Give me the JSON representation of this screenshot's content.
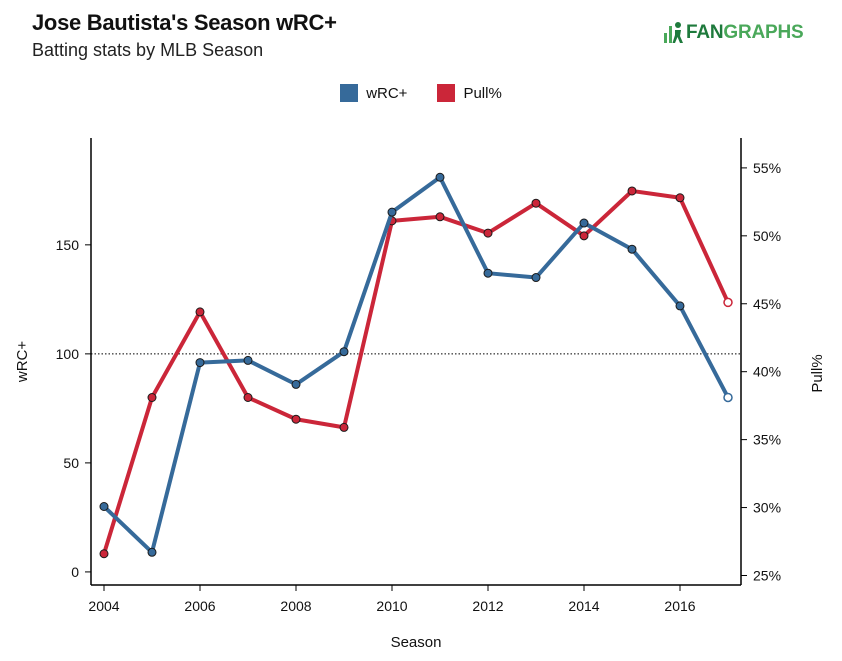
{
  "header": {
    "title": "Jose Bautista's Season wRC+",
    "subtitle": "Batting stats by MLB Season",
    "logo_text_dark": "FAN",
    "logo_text_light": "GRAPHS"
  },
  "colors": {
    "wrc": "#366a9a",
    "pull": "#cb2639",
    "reference_line": "#000000"
  },
  "chart_data": {
    "type": "line",
    "x": [
      2004,
      2005,
      2006,
      2007,
      2008,
      2009,
      2010,
      2011,
      2012,
      2013,
      2014,
      2015,
      2016,
      2017
    ],
    "series": [
      {
        "name": "wRC+",
        "axis": "left",
        "values": [
          30,
          9,
          96,
          97,
          86,
          101,
          165,
          181,
          137,
          135,
          160,
          148,
          122,
          80
        ]
      },
      {
        "name": "Pull%",
        "axis": "right",
        "values": [
          26.6,
          38.1,
          44.4,
          38.1,
          36.5,
          35.9,
          51.1,
          51.4,
          50.2,
          52.4,
          50.0,
          53.3,
          52.8,
          45.1
        ]
      }
    ],
    "xlabel": "Season",
    "ylabel_left": "wRC+",
    "ylabel_right": "Pull%",
    "xlim": [
      2004,
      2017
    ],
    "x_ticks": [
      2004,
      2006,
      2008,
      2010,
      2012,
      2014,
      2016
    ],
    "ylim_left": [
      -6,
      199
    ],
    "y_ticks_left": [
      0,
      50,
      100,
      150
    ],
    "ylim_right": [
      24.3,
      57.2
    ],
    "y_ticks_right": [
      25,
      30,
      35,
      40,
      45,
      50,
      55
    ],
    "right_tick_suffix": "%",
    "reference_line_left": 100,
    "last_point_hollow": true,
    "legend_position": "top-center",
    "grid": false
  }
}
